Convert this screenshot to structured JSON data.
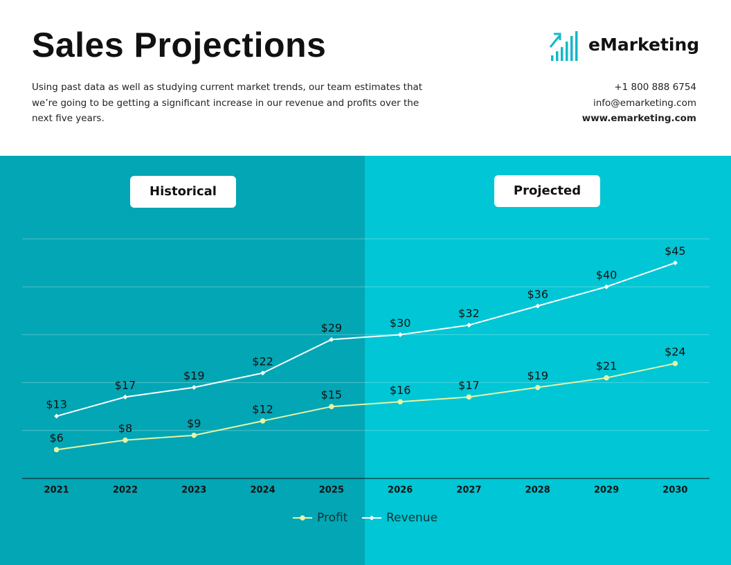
{
  "header": {
    "title": "Sales Projections",
    "description": "Using past data as well as studying current market trends, our team estimates that we’re going to be getting a significant increase in our revenue and profits over the next five years.",
    "brand": "eMarketing",
    "phone": "+1 800 888 6754",
    "email": "info@emarketing.com",
    "website": "www.emarketing.com"
  },
  "chart_data": {
    "type": "line",
    "annotations": [
      "Historical",
      "Projected"
    ],
    "categories": [
      "2021",
      "2022",
      "2023",
      "2024",
      "2025",
      "2026",
      "2027",
      "2028",
      "2029",
      "2030"
    ],
    "series": [
      {
        "name": "Profit",
        "color": "#e6f5a6",
        "marker": "circle",
        "values": [
          6,
          8,
          9,
          12,
          15,
          16,
          17,
          19,
          21,
          24
        ],
        "value_labels": [
          "$6",
          "$8",
          "$9",
          "$12",
          "$15",
          "$16",
          "$17",
          "$19",
          "$21",
          "$24"
        ]
      },
      {
        "name": "Revenue",
        "color": "#ffffff",
        "marker": "diamond",
        "values": [
          13,
          17,
          19,
          22,
          29,
          30,
          32,
          36,
          40,
          45
        ],
        "value_labels": [
          "$13",
          "$17",
          "$19",
          "$22",
          "$29",
          "$30",
          "$32",
          "$36",
          "$40",
          "$45"
        ]
      }
    ],
    "ylim": [
      0,
      50
    ],
    "yticks": [
      0,
      10,
      20,
      30,
      40,
      50
    ],
    "grid": true,
    "legend": "bottom"
  }
}
